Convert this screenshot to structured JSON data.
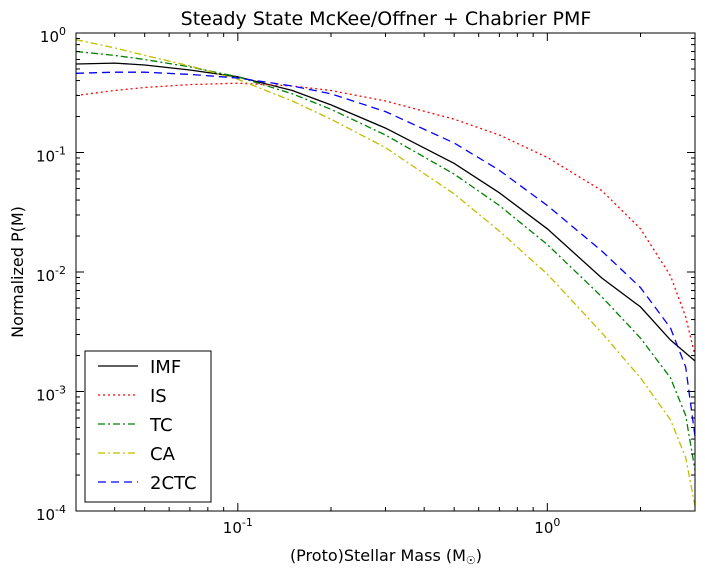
{
  "chart_data": {
    "type": "line",
    "title": "Steady State McKee/Offner + Chabrier PMF",
    "xlabel": "(Proto)Stellar Mass (M",
    "xlabel_symbol": "☉",
    "xlabel_close": ")",
    "ylabel": "Normalized P(M)",
    "xscale": "log",
    "yscale": "log",
    "xlim": [
      0.03,
      3.0
    ],
    "ylim": [
      0.0001,
      1.0
    ],
    "grid": false,
    "legend_position": "lower-left",
    "x_ticks": [
      {
        "value": 0.1,
        "base": "10",
        "exp": "-1"
      },
      {
        "value": 1.0,
        "base": "10",
        "exp": "0"
      }
    ],
    "y_ticks": [
      {
        "value": 1.0,
        "base": "10",
        "exp": "0"
      },
      {
        "value": 0.1,
        "base": "10",
        "exp": "-1"
      },
      {
        "value": 0.01,
        "base": "10",
        "exp": "-2"
      },
      {
        "value": 0.001,
        "base": "10",
        "exp": "-3"
      },
      {
        "value": 0.0001,
        "base": "10",
        "exp": "-4"
      }
    ],
    "x": [
      0.03,
      0.04,
      0.05,
      0.07,
      0.1,
      0.15,
      0.2,
      0.3,
      0.5,
      0.7,
      1.0,
      1.5,
      2.0,
      2.5,
      2.8,
      3.0
    ],
    "series": [
      {
        "name": "IMF",
        "color": "#000000",
        "dash": "solid",
        "values": [
          0.55,
          0.56,
          0.54,
          0.49,
          0.43,
          0.33,
          0.25,
          0.16,
          0.081,
          0.046,
          0.023,
          0.0089,
          0.0051,
          0.0027,
          0.0021,
          0.0018
        ]
      },
      {
        "name": "IS",
        "color": "#ff0000",
        "dash": "dotted",
        "values": [
          0.3,
          0.33,
          0.35,
          0.37,
          0.38,
          0.36,
          0.33,
          0.27,
          0.19,
          0.14,
          0.091,
          0.048,
          0.023,
          0.0093,
          0.0042,
          0.002
        ]
      },
      {
        "name": "TC",
        "color": "#008000",
        "dash": "dashdot",
        "values": [
          0.7,
          0.65,
          0.6,
          0.52,
          0.43,
          0.31,
          0.23,
          0.14,
          0.066,
          0.036,
          0.017,
          0.0062,
          0.0028,
          0.0013,
          0.00063,
          0.00022
        ]
      },
      {
        "name": "CA",
        "color": "#bfbf00",
        "dash": "dashdot",
        "values": [
          0.88,
          0.75,
          0.65,
          0.53,
          0.41,
          0.27,
          0.19,
          0.11,
          0.045,
          0.022,
          0.0096,
          0.0031,
          0.0013,
          0.00058,
          0.00028,
          0.00011
        ]
      },
      {
        "name": "2CTC",
        "color": "#0000ff",
        "dash": "dashed",
        "values": [
          0.46,
          0.47,
          0.47,
          0.45,
          0.42,
          0.36,
          0.31,
          0.22,
          0.12,
          0.071,
          0.036,
          0.015,
          0.0074,
          0.0034,
          0.0016,
          0.00042
        ]
      }
    ]
  }
}
